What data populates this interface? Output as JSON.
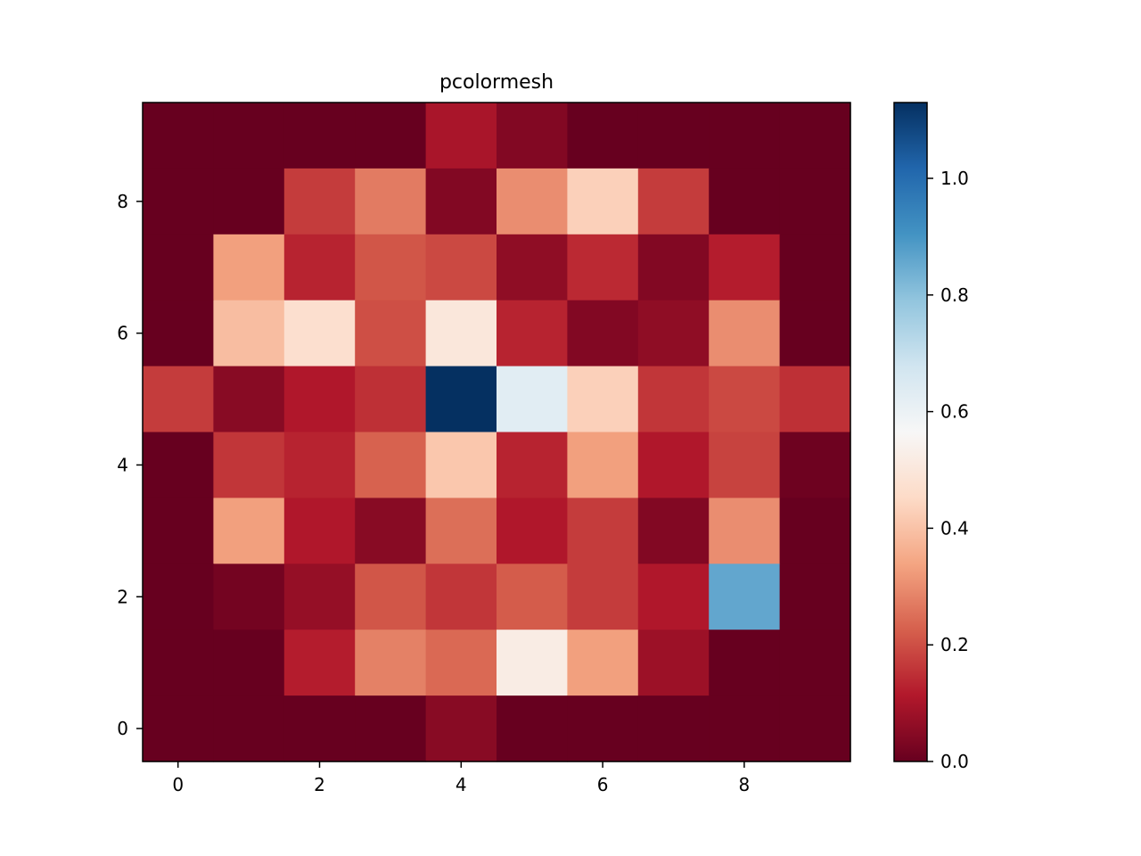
{
  "chart_data": {
    "type": "heatmap",
    "title": "pcolormesh",
    "xlabel": "",
    "ylabel": "",
    "x_ticks": [
      0,
      2,
      4,
      6,
      8
    ],
    "y_ticks": [
      0,
      2,
      4,
      6,
      8
    ],
    "xlim": [
      -0.5,
      9.5
    ],
    "ylim": [
      -0.5,
      9.5
    ],
    "colormap": "RdBu",
    "color_range": [
      0.0,
      1.13
    ],
    "colorbar_ticks": [
      "0.0",
      "0.2",
      "0.4",
      "0.6",
      "0.8",
      "1.0"
    ],
    "rows_top_to_bottom": [
      [
        0.0,
        0.0,
        0.0,
        0.0,
        0.1,
        0.04,
        0.0,
        0.0,
        0.0,
        0.0
      ],
      [
        0.0,
        0.0,
        0.17,
        0.27,
        0.04,
        0.3,
        0.43,
        0.17,
        0.0,
        0.0
      ],
      [
        0.0,
        0.33,
        0.13,
        0.21,
        0.19,
        0.06,
        0.14,
        0.04,
        0.12,
        0.0
      ],
      [
        0.0,
        0.39,
        0.47,
        0.2,
        0.5,
        0.13,
        0.04,
        0.06,
        0.3,
        0.0
      ],
      [
        0.17,
        0.05,
        0.11,
        0.15,
        1.13,
        0.63,
        0.43,
        0.16,
        0.19,
        0.15
      ],
      [
        0.0,
        0.16,
        0.13,
        0.23,
        0.41,
        0.13,
        0.33,
        0.11,
        0.18,
        0.01
      ],
      [
        0.0,
        0.33,
        0.11,
        0.05,
        0.25,
        0.11,
        0.17,
        0.04,
        0.3,
        0.0
      ],
      [
        0.0,
        0.02,
        0.07,
        0.21,
        0.16,
        0.22,
        0.17,
        0.11,
        0.86,
        0.0
      ],
      [
        0.0,
        0.0,
        0.12,
        0.28,
        0.24,
        0.52,
        0.33,
        0.08,
        0.0,
        0.0
      ],
      [
        0.0,
        0.0,
        0.0,
        0.0,
        0.05,
        0.0,
        0.0,
        0.0,
        0.0,
        0.0
      ]
    ]
  },
  "palette": {
    "stops": [
      "#67001f",
      "#b2182b",
      "#d6604d",
      "#f4a582",
      "#fddbc7",
      "#f7f7f7",
      "#d1e5f0",
      "#92c5de",
      "#4393c3",
      "#2166ac",
      "#053061"
    ],
    "axis": "#000000",
    "background": "#ffffff"
  }
}
